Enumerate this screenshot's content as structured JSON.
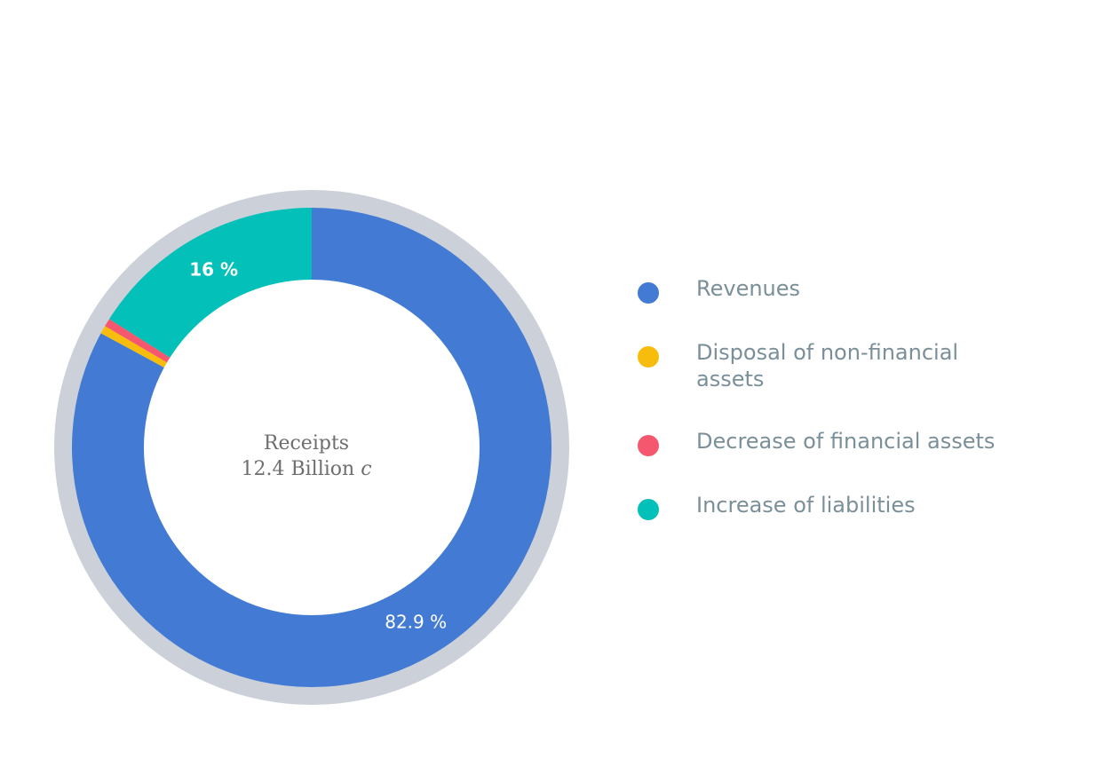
{
  "chart_data": {
    "type": "pie",
    "title": "",
    "center_label": {
      "title": "Receipts",
      "value": "12.4 Billion",
      "unit": "c"
    },
    "series": [
      {
        "name": "Revenues",
        "value": 82.9,
        "label": "82.9 %",
        "color": "#437bd4"
      },
      {
        "name": "Disposal of non-financial assets",
        "value": 0.55,
        "label": "",
        "color": "#f8bd0c"
      },
      {
        "name": "Decrease of financial assets",
        "value": 0.55,
        "label": "",
        "color": "#f5586e"
      },
      {
        "name": "Increase of liabilities",
        "value": 16.0,
        "label": "16 %",
        "color": "#03c0b8"
      }
    ],
    "legend_position": "right",
    "ring_color": "#ccd1d9"
  }
}
